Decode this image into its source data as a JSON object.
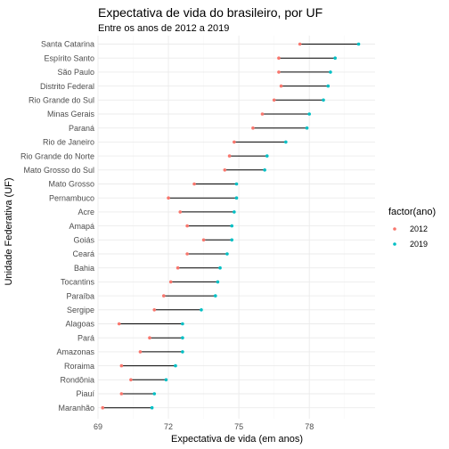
{
  "chart_data": {
    "type": "dumbbell",
    "title": "Expectativa de vida do brasileiro, por UF",
    "subtitle": "Entre os anos de 2012 a 2019",
    "xlabel": "Expectativa de vida (em anos)",
    "ylabel": "Unidade Federativa (UF)",
    "xlim": [
      69,
      80.8
    ],
    "xticks": [
      69,
      72,
      75,
      78
    ],
    "grid": true,
    "legend": {
      "title": "factor(ano)",
      "placement": "right",
      "entries": [
        {
          "label": "2012",
          "color": "#F8766D"
        },
        {
          "label": "2019",
          "color": "#00BFC4"
        }
      ]
    },
    "categories": [
      "Santa Catarina",
      "Espírito Santo",
      "São Paulo",
      "Distrito Federal",
      "Rio Grande do Sul",
      "Minas Gerais",
      "Paraná",
      "Rio de Janeiro",
      "Rio Grande do Norte",
      "Mato Grosso do Sul",
      "Mato Grosso",
      "Pernambuco",
      "Acre",
      "Amapá",
      "Goiás",
      "Ceará",
      "Bahia",
      "Tocantins",
      "Paraíba",
      "Sergipe",
      "Alagoas",
      "Pará",
      "Amazonas",
      "Roraima",
      "Rondônia",
      "Piauí",
      "Maranhão"
    ],
    "series": [
      {
        "name": "2012",
        "values": [
          77.6,
          76.7,
          76.7,
          76.8,
          76.5,
          76.0,
          75.6,
          74.8,
          74.6,
          74.4,
          73.1,
          72.0,
          72.5,
          72.8,
          73.5,
          72.8,
          72.4,
          72.1,
          71.8,
          71.4,
          69.9,
          71.2,
          70.8,
          70.0,
          70.4,
          70.0,
          69.2
        ]
      },
      {
        "name": "2019",
        "values": [
          80.1,
          79.1,
          78.9,
          78.8,
          78.6,
          78.0,
          77.9,
          77.0,
          76.2,
          76.1,
          74.9,
          74.9,
          74.8,
          74.7,
          74.7,
          74.5,
          74.2,
          74.1,
          74.0,
          73.4,
          72.6,
          72.6,
          72.6,
          72.3,
          71.9,
          71.4,
          71.3
        ]
      }
    ]
  }
}
